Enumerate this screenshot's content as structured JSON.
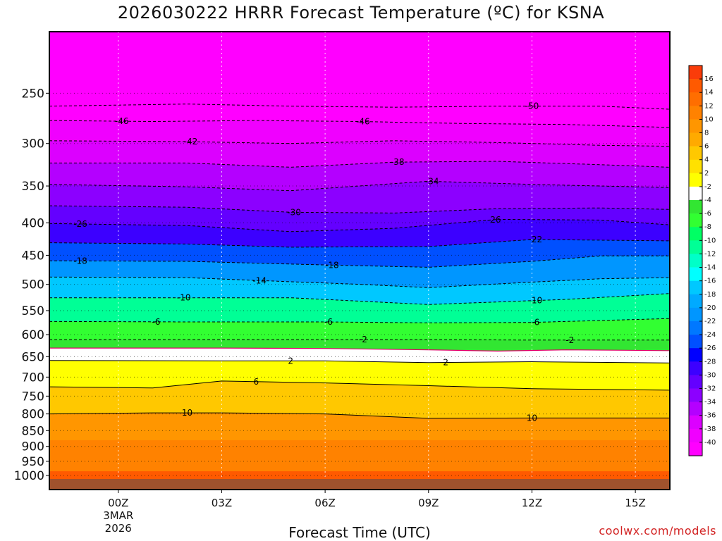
{
  "title": "2026030222 HRRR Forecast Temperature (ºC) for KSNA",
  "credit": "coolwx.com/models",
  "chart_data": {
    "type": "heatmap",
    "title": "2026030222 HRRR Forecast Temperature (ºC) for KSNA",
    "xlabel": "Forecast Time (UTC)",
    "ylabel": "",
    "x_ticks": [
      {
        "label": "00Z",
        "hour": 0,
        "date_line1": "3MAR",
        "date_line2": "2026"
      },
      {
        "label": "03Z",
        "hour": 3
      },
      {
        "label": "06Z",
        "hour": 6
      },
      {
        "label": "09Z",
        "hour": 9
      },
      {
        "label": "12Z",
        "hour": 12
      },
      {
        "label": "15Z",
        "hour": 15
      }
    ],
    "x_range_hours": [
      -2,
      16
    ],
    "y_ticks": [
      250,
      300,
      350,
      400,
      450,
      500,
      550,
      600,
      650,
      700,
      750,
      800,
      850,
      900,
      950,
      1000
    ],
    "y_range_hpa": [
      200,
      1013
    ],
    "y_scale": "log",
    "grid": true,
    "colorbar_labels": [
      16,
      14,
      12,
      10,
      8,
      6,
      4,
      2,
      -2,
      -4,
      -6,
      -8,
      -10,
      -12,
      -14,
      -16,
      -18,
      -20,
      -22,
      -24,
      -26,
      -28,
      -30,
      -32,
      -34,
      -36,
      -38,
      -40
    ],
    "colorbar_colors": [
      "#fa3c0a",
      "#ff5a00",
      "#ff6e00",
      "#ff8200",
      "#ff9600",
      "#ffaa00",
      "#ffc800",
      "#ffe100",
      "#ffff00",
      "#ffffff",
      "#32e632",
      "#32ff32",
      "#00ff64",
      "#00ff96",
      "#00ffc8",
      "#00ffff",
      "#00c8ff",
      "#00aaff",
      "#0096ff",
      "#0078ff",
      "#0050ff",
      "#0000ff",
      "#3c00ff",
      "#6400ff",
      "#8c00ff",
      "#b400ff",
      "#dc00ff",
      "#f000ff",
      "#ff00ff"
    ],
    "dashed_contours": [
      {
        "value": -50,
        "points": [
          [
            -2,
            262
          ],
          [
            2,
            260
          ],
          [
            5,
            262
          ],
          [
            8,
            263
          ],
          [
            11,
            262
          ],
          [
            14,
            262
          ],
          [
            16,
            265
          ]
        ],
        "label_at": 12.0
      },
      {
        "value": -46,
        "points": [
          [
            -2,
            276
          ],
          [
            1,
            277
          ],
          [
            4,
            276
          ],
          [
            7,
            277
          ],
          [
            10,
            279
          ],
          [
            13,
            280
          ],
          [
            16,
            283
          ]
        ],
        "label_at": [
          0.1,
          7.1
        ]
      },
      {
        "value": -42,
        "points": [
          [
            -2,
            297
          ],
          [
            2,
            298
          ],
          [
            5,
            300
          ],
          [
            8,
            297
          ],
          [
            11,
            299
          ],
          [
            14,
            302
          ],
          [
            16,
            303
          ]
        ],
        "label_at": 2.1
      },
      {
        "value": -38,
        "points": [
          [
            -2,
            322
          ],
          [
            2,
            322
          ],
          [
            5,
            327
          ],
          [
            8,
            321
          ],
          [
            11,
            320
          ],
          [
            14,
            324
          ],
          [
            16,
            327
          ]
        ],
        "label_at": 8.1
      },
      {
        "value": -34,
        "points": [
          [
            -2,
            348
          ],
          [
            2,
            351
          ],
          [
            5,
            356
          ],
          [
            9,
            344
          ],
          [
            12,
            348
          ],
          [
            16,
            352
          ]
        ],
        "label_at": 9.1
      },
      {
        "value": -30,
        "points": [
          [
            -2,
            376
          ],
          [
            2,
            378
          ],
          [
            5,
            385
          ],
          [
            8,
            386
          ],
          [
            11,
            380
          ],
          [
            14,
            379
          ],
          [
            16,
            381
          ]
        ],
        "label_at": 5.1
      },
      {
        "value": -26,
        "points": [
          [
            -2,
            401
          ],
          [
            2,
            404
          ],
          [
            5,
            413
          ],
          [
            8,
            408
          ],
          [
            11,
            395
          ],
          [
            14,
            396
          ],
          [
            16,
            403
          ]
        ],
        "label_at": [
          -1.1,
          10.9
        ]
      },
      {
        "value": -22,
        "points": [
          [
            -2,
            430
          ],
          [
            2,
            432
          ],
          [
            5,
            437
          ],
          [
            9,
            436
          ],
          [
            12,
            425
          ],
          [
            16,
            427
          ]
        ],
        "label_at": 12.1
      },
      {
        "value": -18,
        "points": [
          [
            -2,
            459
          ],
          [
            2,
            460
          ],
          [
            6,
            466
          ],
          [
            9,
            470
          ],
          [
            12,
            460
          ],
          [
            14,
            451
          ],
          [
            16,
            451
          ]
        ],
        "label_at": [
          -1.1,
          6.2
        ]
      },
      {
        "value": -14,
        "points": [
          [
            -2,
            487
          ],
          [
            2,
            488
          ],
          [
            4,
            493
          ],
          [
            7,
            500
          ],
          [
            9,
            506
          ],
          [
            12,
            496
          ],
          [
            14,
            490
          ],
          [
            16,
            488
          ]
        ],
        "label_at": 4.1
      },
      {
        "value": -10,
        "points": [
          [
            -2,
            525
          ],
          [
            2,
            525
          ],
          [
            5,
            525
          ],
          [
            9,
            538
          ],
          [
            13,
            528
          ],
          [
            16,
            517
          ]
        ],
        "label_at": [
          1.9,
          12.1
        ]
      },
      {
        "value": -6,
        "points": [
          [
            -2,
            572
          ],
          [
            2,
            573
          ],
          [
            6,
            573
          ],
          [
            9,
            575
          ],
          [
            12,
            574
          ],
          [
            16,
            566
          ]
        ],
        "label_at": [
          1.1,
          6.1,
          12.1
        ]
      },
      {
        "value": -2,
        "points": [
          [
            -2,
            611
          ],
          [
            3,
            611
          ],
          [
            6,
            611
          ],
          [
            9,
            611
          ],
          [
            12,
            612
          ],
          [
            16,
            612
          ]
        ],
        "label_at": [
          7.1,
          13.1
        ]
      }
    ],
    "freezing_line": {
      "value": 0,
      "points": [
        [
          -2,
          630
        ],
        [
          3,
          630
        ],
        [
          6,
          631
        ],
        [
          9,
          634
        ],
        [
          11,
          637
        ],
        [
          13,
          634
        ],
        [
          16,
          636
        ]
      ]
    },
    "solid_contours": [
      {
        "value": 2,
        "points": [
          [
            -2,
            659
          ],
          [
            3,
            660
          ],
          [
            6,
            660
          ],
          [
            9,
            664
          ],
          [
            12,
            662
          ],
          [
            16,
            665
          ]
        ],
        "label_at": [
          5.0,
          9.5
        ]
      },
      {
        "value": 6,
        "points": [
          [
            -2,
            725
          ],
          [
            1,
            728
          ],
          [
            3,
            710
          ],
          [
            6,
            715
          ],
          [
            9,
            722
          ],
          [
            12,
            730
          ],
          [
            16,
            734
          ]
        ],
        "label_at": 4.0
      },
      {
        "value": 10,
        "points": [
          [
            -2,
            800
          ],
          [
            1,
            797
          ],
          [
            3,
            797
          ],
          [
            6,
            800
          ],
          [
            9,
            813
          ],
          [
            12,
            812
          ],
          [
            16,
            812
          ]
        ],
        "label_at": [
          2.0,
          12.0
        ]
      }
    ]
  }
}
